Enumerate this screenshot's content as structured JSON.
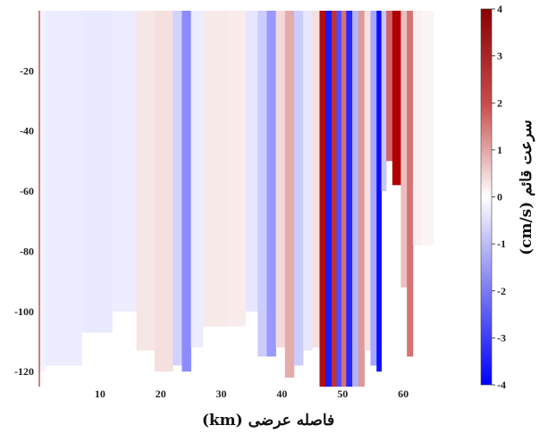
{
  "chart_data": {
    "type": "heatmap",
    "title": "",
    "xlabel": "فاصله عرضی (km)",
    "ylabel": "",
    "x_ticks": [
      10,
      20,
      30,
      40,
      50,
      60
    ],
    "y_ticks": [
      -20,
      -40,
      -60,
      -80,
      -100,
      -120
    ],
    "xlim": [
      0,
      65
    ],
    "ylim": [
      -125,
      0
    ],
    "colorbar": {
      "label": "سرعت قائم (cm/s)",
      "ticks": [
        4,
        3,
        2,
        1,
        0,
        -1,
        -2,
        -3,
        -4
      ],
      "range": [
        -4,
        4
      ],
      "colormap": [
        "#0000ff",
        "#ffffff",
        "#b00000"
      ]
    },
    "colors": {
      "negative": "#0000ff",
      "neutral": "#ffffff",
      "positive": "#b00000"
    },
    "series": [
      {
        "x0": 0.0,
        "x1": 1.0,
        "depth_max": 120,
        "value": -0.2
      },
      {
        "x0": 1.0,
        "x1": 7.0,
        "depth_max": 118,
        "value": -0.3
      },
      {
        "x0": 7.0,
        "x1": 12.0,
        "depth_max": 107,
        "value": -0.35
      },
      {
        "x0": 12.0,
        "x1": 16.0,
        "depth_max": 100,
        "value": -0.3
      },
      {
        "x0": 16.0,
        "x1": 19.0,
        "depth_max": 113,
        "value": 0.4
      },
      {
        "x0": 19.0,
        "x1": 22.0,
        "depth_max": 120,
        "value": 0.5
      },
      {
        "x0": 22.0,
        "x1": 23.5,
        "depth_max": 118,
        "value": -0.7
      },
      {
        "x0": 23.5,
        "x1": 25.0,
        "depth_max": 120,
        "value": -1.8
      },
      {
        "x0": 25.0,
        "x1": 27.0,
        "depth_max": 112,
        "value": -0.3
      },
      {
        "x0": 27.0,
        "x1": 31.0,
        "depth_max": 105,
        "value": 0.35
      },
      {
        "x0": 31.0,
        "x1": 34.0,
        "depth_max": 105,
        "value": 0.3
      },
      {
        "x0": 34.0,
        "x1": 36.0,
        "depth_max": 100,
        "value": -0.4
      },
      {
        "x0": 36.0,
        "x1": 37.5,
        "depth_max": 115,
        "value": -0.8
      },
      {
        "x0": 37.5,
        "x1": 39.0,
        "depth_max": 115,
        "value": -1.6
      },
      {
        "x0": 39.0,
        "x1": 40.5,
        "depth_max": 112,
        "value": 0.6
      },
      {
        "x0": 40.5,
        "x1": 42.0,
        "depth_max": 122,
        "value": 1.3
      },
      {
        "x0": 42.0,
        "x1": 43.5,
        "depth_max": 118,
        "value": -0.8
      },
      {
        "x0": 43.5,
        "x1": 45.0,
        "depth_max": 113,
        "value": -0.4
      },
      {
        "x0": 45.0,
        "x1": 46.2,
        "depth_max": 112,
        "value": 0.5
      },
      {
        "x0": 46.2,
        "x1": 47.2,
        "depth_max": 125,
        "value": 3.8
      },
      {
        "x0": 47.2,
        "x1": 48.2,
        "depth_max": 125,
        "value": -3.6
      },
      {
        "x0": 48.2,
        "x1": 49.0,
        "depth_max": 125,
        "value": 3.2
      },
      {
        "x0": 49.0,
        "x1": 49.8,
        "depth_max": 125,
        "value": -2.8
      },
      {
        "x0": 49.8,
        "x1": 50.6,
        "depth_max": 125,
        "value": 2.2
      },
      {
        "x0": 50.6,
        "x1": 51.6,
        "depth_max": 125,
        "value": -3.4
      },
      {
        "x0": 51.6,
        "x1": 52.6,
        "depth_max": 125,
        "value": -1.2
      },
      {
        "x0": 52.6,
        "x1": 53.6,
        "depth_max": 125,
        "value": 1.6
      },
      {
        "x0": 53.6,
        "x1": 54.6,
        "depth_max": 113,
        "value": 0.5
      },
      {
        "x0": 54.6,
        "x1": 55.6,
        "depth_max": 118,
        "value": -1.4
      },
      {
        "x0": 55.6,
        "x1": 56.4,
        "depth_max": 120,
        "value": -3.8
      },
      {
        "x0": 56.4,
        "x1": 57.2,
        "depth_max": 60,
        "value": -0.9
      },
      {
        "x0": 57.2,
        "x1": 58.2,
        "depth_max": 50,
        "value": 2.4
      },
      {
        "x0": 58.2,
        "x1": 59.6,
        "depth_max": 58,
        "value": 4.0
      },
      {
        "x0": 59.6,
        "x1": 60.6,
        "depth_max": 92,
        "value": 1.0
      },
      {
        "x0": 60.6,
        "x1": 61.6,
        "depth_max": 115,
        "value": 2.2
      },
      {
        "x0": 61.6,
        "x1": 63.0,
        "depth_max": 78,
        "value": 0.25
      },
      {
        "x0": 63.0,
        "x1": 65.0,
        "depth_max": 78,
        "value": 0.15
      }
    ]
  }
}
